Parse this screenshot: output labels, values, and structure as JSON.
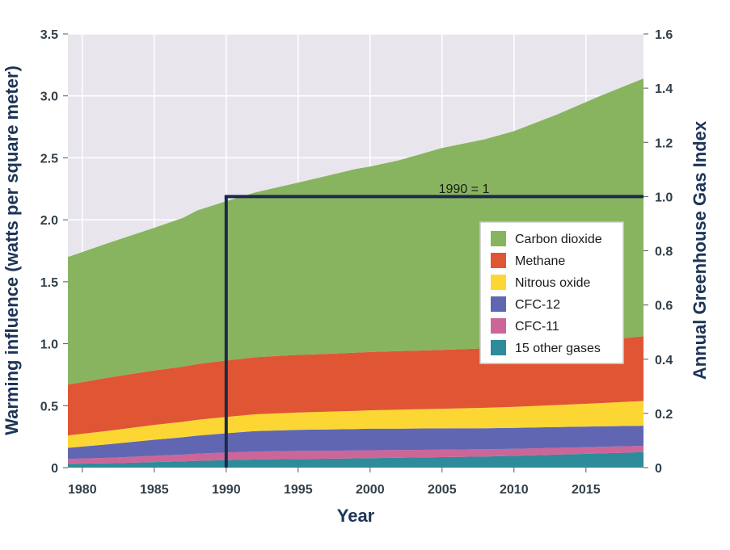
{
  "chart_data": {
    "type": "area",
    "stacked": true,
    "x": [
      1979,
      1982,
      1985,
      1987,
      1988,
      1990,
      1992,
      1995,
      1997,
      1999,
      2000,
      2002,
      2005,
      2008,
      2010,
      2013,
      2016,
      2019
    ],
    "series": [
      {
        "name": "15 other gases",
        "color": "#2e8b99",
        "values": [
          0.03,
          0.035,
          0.045,
          0.05,
          0.055,
          0.06,
          0.065,
          0.07,
          0.072,
          0.075,
          0.077,
          0.08,
          0.085,
          0.09,
          0.095,
          0.105,
          0.115,
          0.125
        ]
      },
      {
        "name": "CFC-11",
        "color": "#cc6699",
        "values": [
          0.04,
          0.045,
          0.05,
          0.055,
          0.058,
          0.062,
          0.065,
          0.065,
          0.064,
          0.063,
          0.063,
          0.062,
          0.06,
          0.058,
          0.057,
          0.055,
          0.053,
          0.05
        ]
      },
      {
        "name": "CFC-12",
        "color": "#6166b3",
        "values": [
          0.09,
          0.11,
          0.13,
          0.14,
          0.145,
          0.155,
          0.165,
          0.17,
          0.172,
          0.173,
          0.174,
          0.173,
          0.172,
          0.17,
          0.169,
          0.167,
          0.165,
          0.163
        ]
      },
      {
        "name": "Nitrous oxide",
        "color": "#fcd734",
        "values": [
          0.1,
          0.11,
          0.12,
          0.125,
          0.128,
          0.132,
          0.135,
          0.14,
          0.143,
          0.147,
          0.149,
          0.153,
          0.158,
          0.165,
          0.17,
          0.178,
          0.188,
          0.2
        ]
      },
      {
        "name": "Methane",
        "color": "#e05634",
        "values": [
          0.41,
          0.43,
          0.44,
          0.445,
          0.45,
          0.455,
          0.46,
          0.465,
          0.467,
          0.47,
          0.47,
          0.472,
          0.475,
          0.48,
          0.485,
          0.495,
          0.507,
          0.522
        ]
      },
      {
        "name": "Carbon dioxide",
        "color": "#88b45f",
        "values": [
          1.03,
          1.09,
          1.15,
          1.2,
          1.24,
          1.286,
          1.33,
          1.39,
          1.436,
          1.482,
          1.497,
          1.54,
          1.63,
          1.687,
          1.739,
          1.85,
          1.972,
          2.08
        ]
      }
    ],
    "title": "",
    "xlabel": "Year",
    "ylabel": "Warming influence (watts per square meter)",
    "ylim": [
      0,
      3.5
    ],
    "xlim": [
      1979,
      2019
    ],
    "xticks": [
      1980,
      1985,
      1990,
      1995,
      2000,
      2005,
      2010,
      2015
    ],
    "yticks": [
      0,
      0.5,
      1.0,
      1.5,
      2.0,
      2.5,
      3.0,
      3.5
    ],
    "ytick_labels": [
      "0",
      "0.5",
      "1.0",
      "1.5",
      "2.0",
      "2.5",
      "3.0",
      "3.5"
    ],
    "y2label": "Annual Greenhouse Gas Index",
    "y2lim": [
      0,
      1.6
    ],
    "y2ticks": [
      0,
      0.2,
      0.4,
      0.6,
      0.8,
      1.0,
      1.2,
      1.4,
      1.6
    ],
    "y2tick_labels": [
      "0",
      "0.2",
      "0.4",
      "0.6",
      "0.8",
      "1.0",
      "1.2",
      "1.4",
      "1.6"
    ],
    "reference": {
      "label": "1990 = 1",
      "year": 1990,
      "index_value": 1.0
    },
    "legend_order": [
      "Carbon dioxide",
      "Methane",
      "Nitrous oxide",
      "CFC-12",
      "CFC-11",
      "15 other gases"
    ],
    "grid": true,
    "legend_position": "center-right"
  }
}
